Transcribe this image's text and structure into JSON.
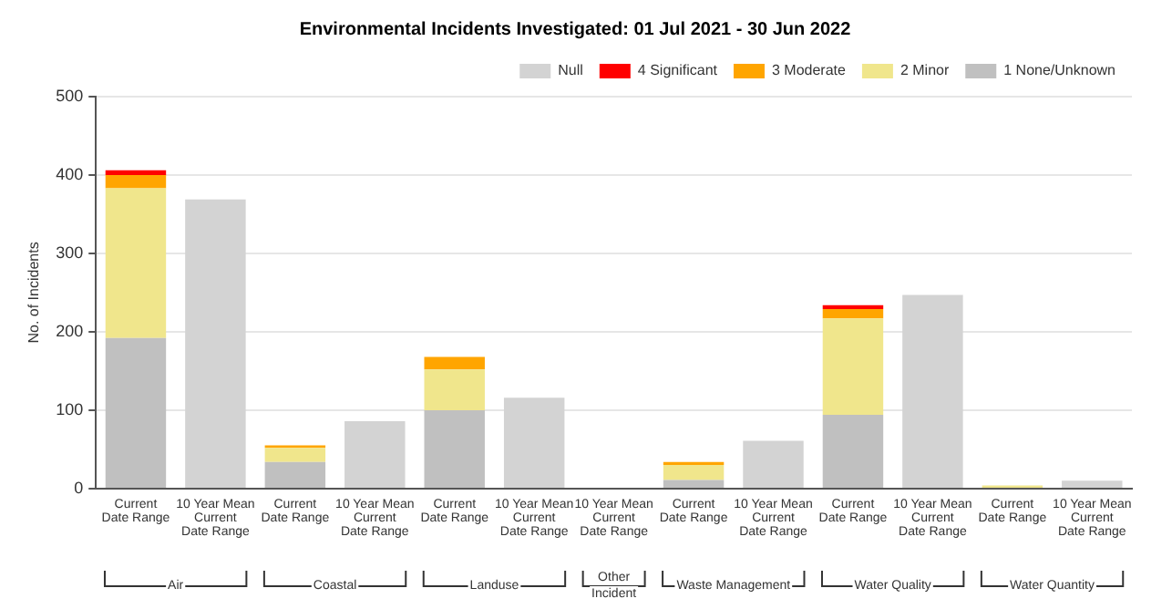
{
  "chart_data": {
    "type": "bar",
    "title": "Environmental Incidents Investigated: 01 Jul 2021 - 30 Jun 2022",
    "ylabel": "No. of Incidents",
    "categories": [
      "Current\nDate Range",
      "10 Year Mean\nCurrent\nDate Range",
      "Current\nDate Range",
      "10 Year Mean\nCurrent\nDate Range",
      "Current\nDate Range",
      "10 Year Mean\nCurrent\nDate Range",
      "10 Year Mean\nCurrent\nDate Range",
      "Current\nDate Range",
      "10 Year Mean\nCurrent\nDate Range",
      "Current\nDate Range",
      "10 Year Mean\nCurrent\nDate Range",
      "Current\nDate Range",
      "10 Year Mean\nCurrent\nDate Range"
    ],
    "annotations": [
      "Air",
      "Coastal",
      "Landuse",
      "Other Incident",
      "Waste Management",
      "Water Quality",
      "Water Quantity"
    ],
    "stacked": true,
    "series": [
      {
        "name": "1 None/Unknown",
        "color": "#c0c0c0",
        "values": [
          192,
          null,
          34,
          null,
          100,
          null,
          null,
          11,
          null,
          94,
          null,
          0,
          null
        ]
      },
      {
        "name": "2 Minor",
        "color": "#f0e68c",
        "values": [
          191,
          null,
          18,
          null,
          52,
          null,
          null,
          19,
          null,
          123,
          null,
          4,
          null
        ]
      },
      {
        "name": "3 Moderate",
        "color": "#ffa500",
        "values": [
          17,
          null,
          3,
          null,
          16,
          null,
          null,
          4,
          null,
          12,
          null,
          0,
          null
        ]
      },
      {
        "name": "4 Significant",
        "color": "#ff0000",
        "values": [
          6,
          null,
          0,
          null,
          0,
          null,
          null,
          0,
          null,
          5,
          null,
          0,
          null
        ]
      },
      {
        "name": "Null",
        "color": "#d3d3d3",
        "values": [
          null,
          369,
          null,
          86,
          null,
          116,
          0,
          null,
          61,
          null,
          247,
          null,
          10
        ]
      }
    ],
    "ylim": [
      0,
      500
    ],
    "yticks": [
      0,
      100,
      200,
      300,
      400,
      500
    ],
    "grid": "y",
    "legend": "top right"
  }
}
